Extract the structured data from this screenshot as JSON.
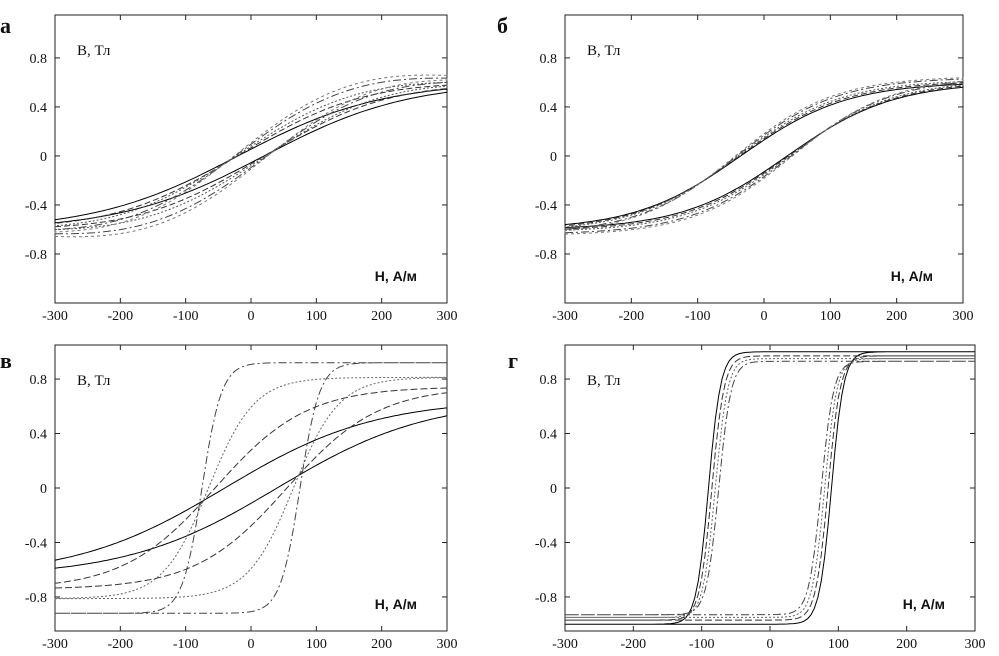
{
  "panels": [
    {
      "label": "а",
      "ylabel": "B, Тл",
      "xlabel": "H, А/м",
      "xticks": [
        "-300",
        "-200",
        "-100",
        "0",
        "100",
        "200",
        "300"
      ],
      "yticks": [
        "0.8",
        "0.4",
        "0",
        "-0.4",
        "-0.8"
      ],
      "xlim": [
        -300,
        300
      ],
      "ylim": [
        -1.2,
        1.15
      ],
      "loops": [
        {
          "ht": 0.52,
          "hc": 20,
          "s": 220,
          "off": 0.0,
          "color": "#000000",
          "dash": ""
        },
        {
          "ht": 0.55,
          "hc": 22,
          "s": 210,
          "off": 0.02,
          "color": "#333333",
          "dash": "6,3"
        },
        {
          "ht": 0.57,
          "hc": 25,
          "s": 205,
          "off": 0.03,
          "color": "#555555",
          "dash": "2,2"
        },
        {
          "ht": 0.6,
          "hc": 28,
          "s": 200,
          "off": 0.05,
          "color": "#444444",
          "dash": "8,3,2,3"
        },
        {
          "ht": 0.62,
          "hc": 30,
          "s": 195,
          "off": 0.06,
          "color": "#777777",
          "dash": "3,3"
        }
      ]
    },
    {
      "label": "б",
      "ylabel": "B, Тл",
      "xlabel": "H, А/м",
      "xticks": [
        "-300",
        "-200",
        "-100",
        "0",
        "100",
        "200",
        "300"
      ],
      "yticks": [
        "0.8",
        "0.4",
        "0",
        "-0.4",
        "-0.8"
      ],
      "xlim": [
        -300,
        300
      ],
      "ylim": [
        -1.2,
        1.15
      ],
      "loops": [
        {
          "ht": 0.56,
          "hc": 35,
          "s": 160,
          "off": 0.0,
          "color": "#000000",
          "dash": ""
        },
        {
          "ht": 0.57,
          "hc": 37,
          "s": 158,
          "off": 0.0,
          "color": "#333333",
          "dash": "6,3"
        },
        {
          "ht": 0.58,
          "hc": 39,
          "s": 155,
          "off": 0.0,
          "color": "#555555",
          "dash": "2,2"
        },
        {
          "ht": 0.6,
          "hc": 41,
          "s": 152,
          "off": 0.0,
          "color": "#444444",
          "dash": "8,3,2,3"
        },
        {
          "ht": 0.61,
          "hc": 43,
          "s": 150,
          "off": 0.0,
          "color": "#777777",
          "dash": "3,3"
        }
      ]
    },
    {
      "label": "в",
      "ylabel": "B, Тл",
      "xlabel": "H, А/м",
      "xticks": [
        "-300",
        "-200",
        "-100",
        "0",
        "100",
        "200",
        "300"
      ],
      "yticks": [
        "0.8",
        "0.4",
        "0",
        "-0.4",
        "-0.8"
      ],
      "xlim": [
        -300,
        300
      ],
      "ylim": [
        -1.05,
        1.05
      ],
      "loops": [
        {
          "ht": 0.53,
          "hc": 40,
          "s": 230,
          "off": 0.0,
          "color": "#000000",
          "dash": ""
        },
        {
          "ht": 0.7,
          "hc": 55,
          "s": 140,
          "off": 0.0,
          "color": "#333333",
          "dash": "7,3"
        },
        {
          "ht": 0.81,
          "hc": 65,
          "s": 70,
          "off": 0.0,
          "color": "#666666",
          "dash": "2,2"
        },
        {
          "ht": 0.92,
          "hc": 75,
          "s": 30,
          "off": 0.0,
          "color": "#444444",
          "dash": "8,3,2,3"
        }
      ]
    },
    {
      "label": "г",
      "ylabel": "B, Тл",
      "xlabel": "H, А/м",
      "xticks": [
        "-300",
        "-200",
        "-100",
        "0",
        "100",
        "200",
        "300"
      ],
      "yticks": [
        "0.8",
        "0.4",
        "0",
        "-0.4",
        "-0.8"
      ],
      "xlim": [
        -300,
        300
      ],
      "ylim": [
        -1.05,
        1.05
      ],
      "loops": [
        {
          "ht": 1.0,
          "hc": 90,
          "s": 18,
          "off": 0.0,
          "color": "#000000",
          "dash": ""
        },
        {
          "ht": 0.97,
          "hc": 85,
          "s": 18,
          "off": 0.0,
          "color": "#333333",
          "dash": "7,3"
        },
        {
          "ht": 0.95,
          "hc": 80,
          "s": 18,
          "off": 0.0,
          "color": "#666666",
          "dash": "2,2"
        },
        {
          "ht": 0.93,
          "hc": 75,
          "s": 18,
          "off": 0.0,
          "color": "#444444",
          "dash": "8,3,2,3"
        }
      ]
    }
  ],
  "chart_data": [
    {
      "type": "line",
      "panel": "а",
      "xlabel": "H, А/м",
      "ylabel": "B, Тл",
      "xlim": [
        -300,
        300
      ],
      "description_values": {
        "B_at_H_300": [
          0.52,
          0.55,
          0.57,
          0.6,
          0.62
        ],
        "B_at_H_minus_300": [
          -0.5,
          -0.53,
          -0.56,
          -0.58,
          -0.61
        ]
      }
    },
    {
      "type": "line",
      "panel": "б",
      "xlabel": "H, А/м",
      "ylabel": "B, Тл",
      "xlim": [
        -300,
        300
      ],
      "description_values": {
        "B_at_H_300": [
          0.56,
          0.57,
          0.58,
          0.6,
          0.61
        ],
        "B_at_H_minus_300": [
          -0.56,
          -0.57,
          -0.58,
          -0.6,
          -0.61
        ]
      }
    },
    {
      "type": "line",
      "panel": "в",
      "xlabel": "H, А/м",
      "ylabel": "B, Тл",
      "xlim": [
        -300,
        300
      ],
      "description_values": {
        "B_at_H_300": [
          0.53,
          0.7,
          0.81,
          0.92
        ],
        "coercive_H": [
          40,
          55,
          65,
          75
        ]
      }
    },
    {
      "type": "line",
      "panel": "г",
      "xlabel": "H, А/м",
      "ylabel": "B, Тл",
      "xlim": [
        -300,
        300
      ],
      "description_values": {
        "B_at_H_300": [
          1.0,
          0.97,
          0.95,
          0.93
        ],
        "coercive_H": [
          90,
          85,
          80,
          75
        ]
      }
    }
  ]
}
